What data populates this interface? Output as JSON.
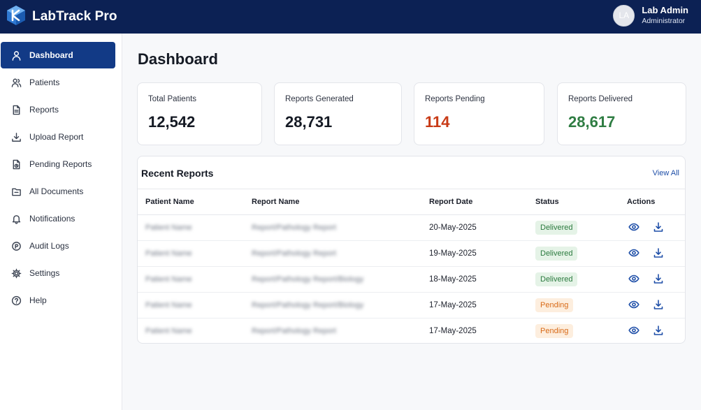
{
  "app": {
    "title": "LabTrack Pro",
    "logo_icon": "labtrack-logo-icon"
  },
  "user": {
    "initials": "LA",
    "name": "Lab Admin",
    "role": "Administrator"
  },
  "sidebar": {
    "items": [
      {
        "label": "Dashboard",
        "icon": "dashboard-icon",
        "active": true
      },
      {
        "label": "Patients",
        "icon": "patients-icon"
      },
      {
        "label": "Reports",
        "icon": "reports-icon"
      },
      {
        "label": "Upload Report",
        "icon": "upload-icon"
      },
      {
        "label": "Pending Reports",
        "icon": "pending-reports-icon"
      },
      {
        "label": "All Documents",
        "icon": "folder-icon"
      },
      {
        "label": "Notifications",
        "icon": "bell-icon"
      },
      {
        "label": "Audit Logs",
        "icon": "audit-logs-icon"
      },
      {
        "label": "Settings",
        "icon": "gear-icon"
      },
      {
        "label": "Help",
        "icon": "help-icon"
      }
    ]
  },
  "page": {
    "title": "Dashboard"
  },
  "stats": [
    {
      "label": "Total Patients",
      "value": "12,542",
      "color": "#151a24"
    },
    {
      "label": "Reports Generated",
      "value": "28,731",
      "color": "#151a24"
    },
    {
      "label": "Reports Pending",
      "value": "114",
      "color": "#c83a16"
    },
    {
      "label": "Reports Delivered",
      "value": "28,617",
      "color": "#2f7d43"
    }
  ],
  "recent_reports": {
    "title": "Recent Reports",
    "view_all": "View All",
    "columns": [
      "Patient Name",
      "Report Name",
      "Report Date",
      "Status",
      "Actions"
    ],
    "rows": [
      {
        "patient": "Patient Name",
        "report": "Report/Pathology Report",
        "date": "20-May-2025",
        "status": "Delivered"
      },
      {
        "patient": "Patient Name",
        "report": "Report/Pathology Report",
        "date": "19-May-2025",
        "status": "Delivered"
      },
      {
        "patient": "Patient Name",
        "report": "Report/Pathology Report/Biology",
        "date": "18-May-2025",
        "status": "Delivered"
      },
      {
        "patient": "Patient Name",
        "report": "Report/Pathology Report/Biology",
        "date": "17-May-2025",
        "status": "Pending"
      },
      {
        "patient": "Patient Name",
        "report": "Report/Pathology Report",
        "date": "17-May-2025",
        "status": "Pending"
      }
    ]
  }
}
